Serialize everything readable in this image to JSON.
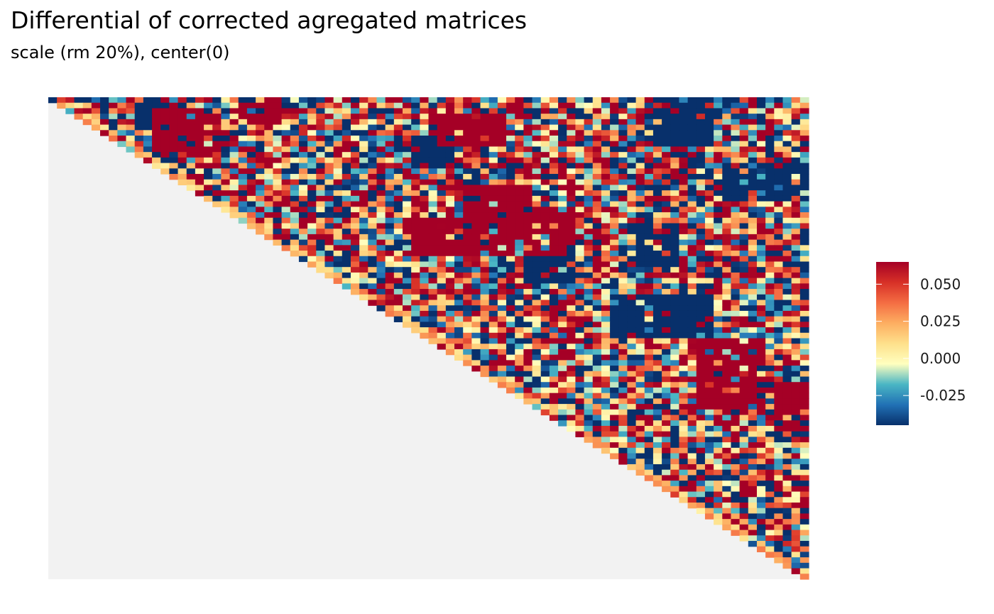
{
  "chart_data": {
    "type": "heatmap",
    "title": "Differential of corrected agregated matrices",
    "subtitle": "scale (rm 20%), center(0)",
    "shape": "upper-triangle",
    "matrix_size": 88,
    "value_range": [
      -0.045,
      0.065
    ],
    "colorscale": [
      "#08306b",
      "#2171b5",
      "#4ab6c4",
      "#ffffbf",
      "#fee08b",
      "#fdae61",
      "#f46d43",
      "#d73027",
      "#a50026"
    ],
    "colorbar": {
      "ticks": [
        0.05,
        0.025,
        0.0,
        -0.025
      ],
      "tick_labels": [
        "0.050",
        "0.025",
        "0.000",
        "-0.025"
      ]
    },
    "missing_color": "#f2f2f2",
    "high_signal_regions": [
      {
        "rows": [
          2,
          9
        ],
        "cols": [
          12,
          17
        ]
      },
      {
        "rows": [
          6,
          10
        ],
        "cols": [
          17,
          19
        ]
      },
      {
        "rows": [
          3,
          8
        ],
        "cols": [
          44,
          52
        ]
      },
      {
        "rows": [
          16,
          26
        ],
        "cols": [
          48,
          55
        ]
      },
      {
        "rows": [
          22,
          28
        ],
        "cols": [
          41,
          53
        ]
      },
      {
        "rows": [
          20,
          28
        ],
        "cols": [
          55,
          60
        ]
      },
      {
        "rows": [
          44,
          56
        ],
        "cols": [
          75,
          82
        ]
      },
      {
        "rows": [
          52,
          60
        ],
        "cols": [
          84,
          88
        ]
      },
      {
        "rows": [
          1,
          4
        ],
        "cols": [
          21,
          26
        ]
      }
    ],
    "low_signal_regions": [
      {
        "rows": [
          0,
          5
        ],
        "cols": [
          10,
          13
        ]
      },
      {
        "rows": [
          7,
          11
        ],
        "cols": [
          40,
          46
        ]
      },
      {
        "rows": [
          28,
          33
        ],
        "cols": [
          55,
          60
        ]
      },
      {
        "rows": [
          36,
          43
        ],
        "cols": [
          65,
          76
        ]
      },
      {
        "rows": [
          12,
          18
        ],
        "cols": [
          78,
          88
        ]
      },
      {
        "rows": [
          0,
          8
        ],
        "cols": [
          70,
          76
        ]
      },
      {
        "rows": [
          23,
          30
        ],
        "cols": [
          68,
          72
        ]
      }
    ]
  }
}
